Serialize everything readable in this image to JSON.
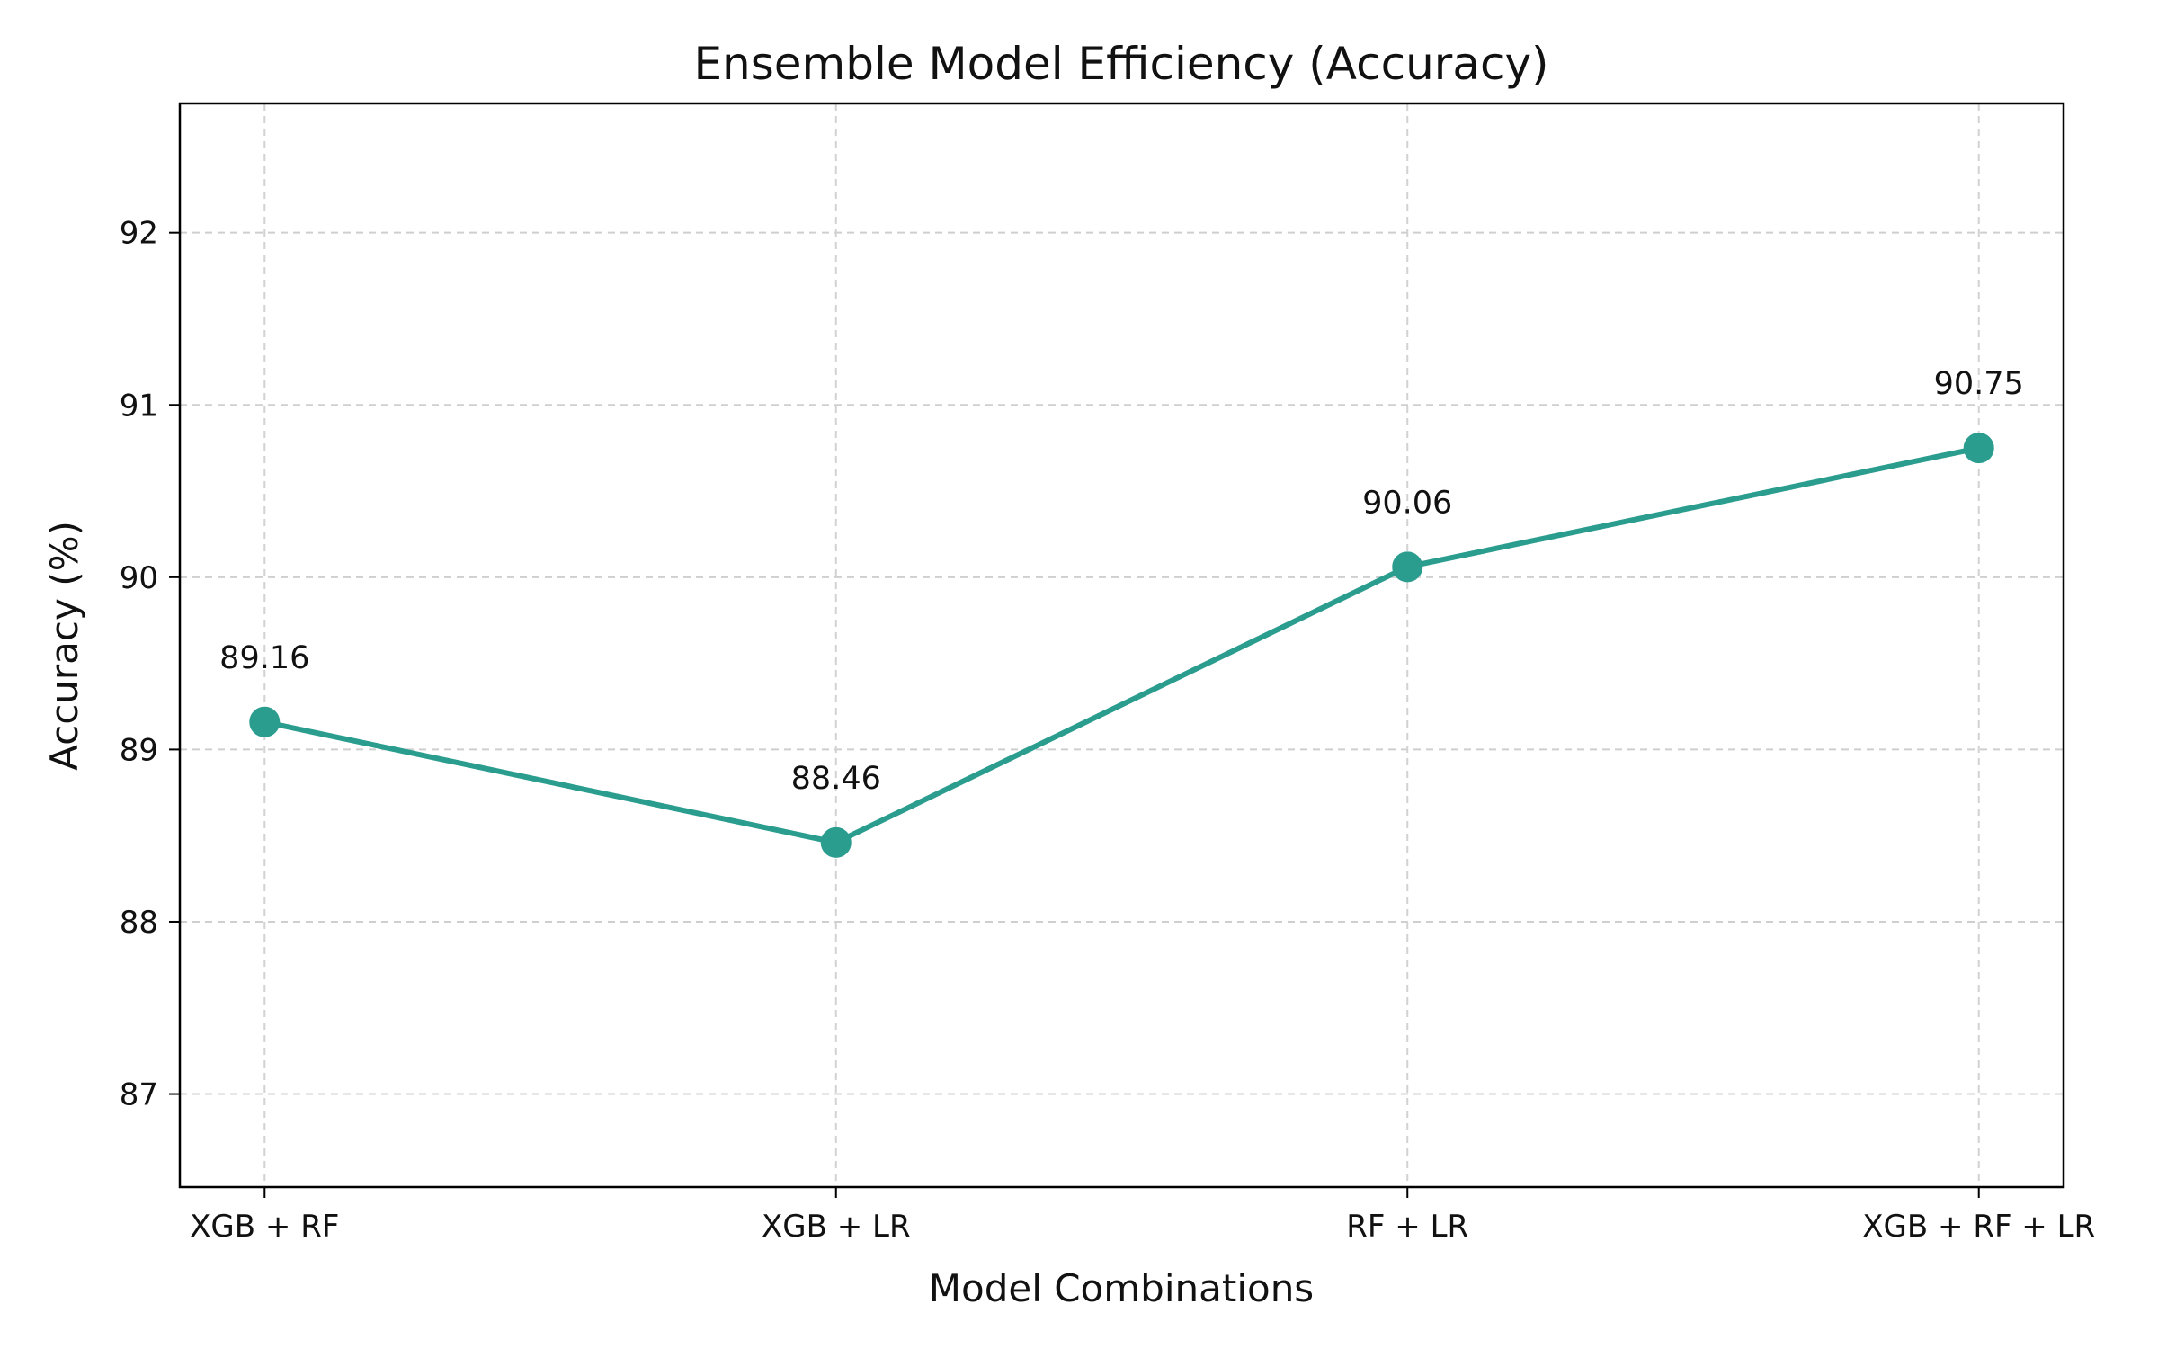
{
  "chart_data": {
    "type": "line",
    "title": "Ensemble Model Efficiency (Accuracy)",
    "xlabel": "Model Combinations",
    "ylabel": "Accuracy (%)",
    "categories": [
      "XGB + RF",
      "XGB + LR",
      "RF + LR",
      "XGB + RF + LR"
    ],
    "series": [
      {
        "values": [
          89.16,
          88.46,
          90.06,
          90.75
        ],
        "value_labels": [
          "89.16",
          "88.46",
          "90.06",
          "90.75"
        ],
        "color": "#2a9d8f"
      }
    ],
    "ylim": [
      86.46,
      92.75
    ],
    "yticks": [
      87,
      88,
      89,
      90,
      91,
      92
    ],
    "grid": true,
    "grid_style": "dashed",
    "legend": "none"
  }
}
